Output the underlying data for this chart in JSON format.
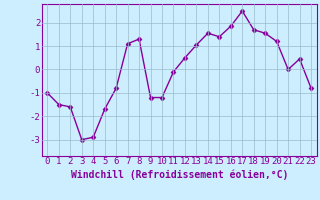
{
  "x": [
    0,
    1,
    2,
    3,
    4,
    5,
    6,
    7,
    8,
    9,
    10,
    11,
    12,
    13,
    14,
    15,
    16,
    17,
    18,
    19,
    20,
    21,
    22,
    23
  ],
  "y": [
    -1.0,
    -1.5,
    -1.6,
    -3.0,
    -2.9,
    -1.7,
    -0.8,
    1.1,
    1.3,
    -1.2,
    -1.2,
    -0.1,
    0.5,
    1.05,
    1.55,
    1.4,
    1.85,
    2.5,
    1.7,
    1.55,
    1.2,
    0.0,
    0.45,
    -0.8
  ],
  "line_color": "#880099",
  "marker": "D",
  "marker_size": 2.5,
  "linewidth": 1.0,
  "bg_color": "#cceeff",
  "grid_color": "#99bbcc",
  "xlabel": "Windchill (Refroidissement éolien,°C)",
  "xlabel_fontsize": 7,
  "xtick_labels": [
    "0",
    "1",
    "2",
    "3",
    "4",
    "5",
    "6",
    "7",
    "8",
    "9",
    "10",
    "11",
    "12",
    "13",
    "14",
    "15",
    "16",
    "17",
    "18",
    "19",
    "20",
    "21",
    "22",
    "23"
  ],
  "ytick_labels": [
    "-3",
    "-2",
    "-1",
    "0",
    "1",
    "2"
  ],
  "ylim": [
    -3.7,
    2.8
  ],
  "xlim": [
    -0.5,
    23.5
  ],
  "yticks": [
    -3,
    -2,
    -1,
    0,
    1,
    2
  ],
  "tick_color": "#880099",
  "tick_fontsize": 6.5,
  "spine_color": "#880099"
}
